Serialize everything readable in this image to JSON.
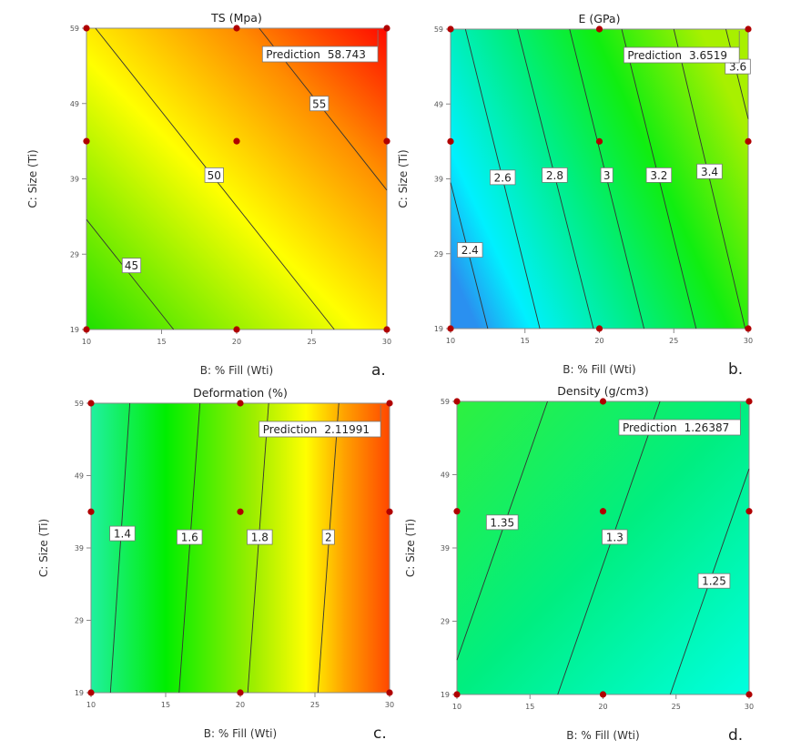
{
  "chart_data": [
    {
      "type": "contour",
      "panel_label": "a.",
      "title": "TS (Mpa)",
      "xlabel": "B: % Fill (Wti)",
      "ylabel": "C: Size (Ti)",
      "xlim": [
        10,
        30
      ],
      "ylim": [
        19,
        59
      ],
      "xticks": [
        10,
        15,
        20,
        25,
        30
      ],
      "yticks": [
        19,
        29,
        39,
        49,
        59
      ],
      "colormap": {
        "from": [
          10,
          19
        ],
        "to": [
          30,
          59
        ],
        "stops": [
          [
            0,
            "#1ee000"
          ],
          [
            0.45,
            "#ffff00"
          ],
          [
            0.75,
            "#ff8c00"
          ],
          [
            1,
            "#ff0a00"
          ]
        ]
      },
      "contours": [
        {
          "level": "45",
          "points": [
            [
              10,
              33.6
            ],
            [
              15.8,
              19
            ]
          ],
          "label_at": [
            13,
            27.5
          ]
        },
        {
          "level": "50",
          "points": [
            [
              10.6,
              59
            ],
            [
              26.5,
              19
            ]
          ],
          "label_at": [
            18.5,
            39.5
          ]
        },
        {
          "level": "55",
          "points": [
            [
              21.5,
              59
            ],
            [
              30,
              37.5
            ]
          ],
          "label_at": [
            25.5,
            49
          ]
        }
      ],
      "design_points": [
        [
          10,
          19
        ],
        [
          20,
          19
        ],
        [
          30,
          19
        ],
        [
          10,
          44
        ],
        [
          20,
          44
        ],
        [
          30,
          44
        ],
        [
          10,
          59
        ],
        [
          20,
          59
        ],
        [
          30,
          59
        ]
      ],
      "prediction": {
        "label": "Prediction",
        "value": "58.743",
        "at": [
          29.4,
          59
        ]
      }
    },
    {
      "type": "contour",
      "panel_label": "b.",
      "title": "E (GPa)",
      "xlabel": "B: % Fill (Wti)",
      "ylabel": "C: Size (Ti)",
      "xlim": [
        10,
        30
      ],
      "ylim": [
        19,
        59
      ],
      "xticks": [
        10,
        15,
        20,
        25,
        30
      ],
      "yticks": [
        19,
        29,
        39,
        49,
        59
      ],
      "colormap": {
        "from": [
          10,
          27
        ],
        "to": [
          30,
          45
        ],
        "stops": [
          [
            0,
            "#2a90f0"
          ],
          [
            0.15,
            "#00f0ff"
          ],
          [
            0.45,
            "#00ee80"
          ],
          [
            0.7,
            "#10ee10"
          ],
          [
            1,
            "#a8f000"
          ]
        ]
      },
      "contours": [
        {
          "level": "2.4",
          "points": [
            [
              10,
              38.5
            ],
            [
              12.5,
              19
            ]
          ],
          "label_at": [
            11.3,
            29.5
          ]
        },
        {
          "level": "2.6",
          "points": [
            [
              11.0,
              59
            ],
            [
              16.0,
              19
            ]
          ],
          "label_at": [
            13.5,
            39.2
          ]
        },
        {
          "level": "2.8",
          "points": [
            [
              14.5,
              59
            ],
            [
              19.6,
              19
            ]
          ],
          "label_at": [
            17.0,
            39.5
          ]
        },
        {
          "level": "3",
          "points": [
            [
              18.0,
              59
            ],
            [
              23.0,
              19
            ]
          ],
          "label_at": [
            20.5,
            39.5
          ]
        },
        {
          "level": "3.2",
          "points": [
            [
              21.5,
              59
            ],
            [
              26.5,
              19
            ]
          ],
          "label_at": [
            24.0,
            39.5
          ]
        },
        {
          "level": "3.4",
          "points": [
            [
              25.0,
              59
            ],
            [
              29.8,
              19
            ]
          ],
          "label_at": [
            27.4,
            40.0
          ]
        },
        {
          "level": "3.6",
          "points": [
            [
              28.5,
              59
            ],
            [
              30,
              47
            ]
          ],
          "label_at": [
            29.3,
            54
          ]
        }
      ],
      "design_points": [
        [
          10,
          19
        ],
        [
          20,
          19
        ],
        [
          30,
          19
        ],
        [
          10,
          44
        ],
        [
          20,
          44
        ],
        [
          30,
          44
        ],
        [
          10,
          59
        ],
        [
          20,
          59
        ],
        [
          30,
          59
        ]
      ],
      "prediction": {
        "label": "Prediction",
        "value": "3.6519",
        "at": [
          29.4,
          59
        ]
      }
    },
    {
      "type": "contour",
      "panel_label": "c.",
      "title": "Deformation (%)",
      "xlabel": "B: % Fill (Wti)",
      "ylabel": "C: Size (Ti)",
      "xlim": [
        10,
        30
      ],
      "ylim": [
        19,
        59
      ],
      "xticks": [
        10,
        15,
        20,
        25,
        30
      ],
      "yticks": [
        19,
        29,
        39,
        49,
        59
      ],
      "colormap": {
        "from": [
          10,
          39
        ],
        "to": [
          30,
          39
        ],
        "stops": [
          [
            0,
            "#20f0a0"
          ],
          [
            0.25,
            "#00ee00"
          ],
          [
            0.55,
            "#a0ee00"
          ],
          [
            0.72,
            "#ffff00"
          ],
          [
            0.85,
            "#ffa000"
          ],
          [
            1,
            "#ff4800"
          ]
        ]
      },
      "contours": [
        {
          "level": "1.4",
          "points": [
            [
              12.6,
              59
            ],
            [
              11.3,
              19
            ]
          ],
          "label_at": [
            12.1,
            41
          ]
        },
        {
          "level": "1.6",
          "points": [
            [
              17.3,
              59
            ],
            [
              15.9,
              19
            ]
          ],
          "label_at": [
            16.6,
            40.5
          ]
        },
        {
          "level": "1.8",
          "points": [
            [
              21.9,
              59
            ],
            [
              20.5,
              19
            ]
          ],
          "label_at": [
            21.3,
            40.5
          ]
        },
        {
          "level": "2",
          "points": [
            [
              26.6,
              59
            ],
            [
              25.2,
              19
            ]
          ],
          "label_at": [
            25.9,
            40.5
          ]
        }
      ],
      "design_points": [
        [
          10,
          19
        ],
        [
          20,
          19
        ],
        [
          30,
          19
        ],
        [
          10,
          44
        ],
        [
          20,
          44
        ],
        [
          30,
          44
        ],
        [
          10,
          59
        ],
        [
          20,
          59
        ],
        [
          30,
          59
        ]
      ],
      "prediction": {
        "label": "Prediction",
        "value": "2.11991",
        "at": [
          29.4,
          59
        ]
      }
    },
    {
      "type": "contour",
      "panel_label": "d.",
      "title": "Density (g/cm3)",
      "xlabel": "B: % Fill (Wti)",
      "ylabel": "C: Size (Ti)",
      "xlim": [
        10,
        30
      ],
      "ylim": [
        19,
        59
      ],
      "xticks": [
        10,
        15,
        20,
        25,
        30
      ],
      "yticks": [
        19,
        29,
        39,
        49,
        59
      ],
      "colormap": {
        "from": [
          10,
          59
        ],
        "to": [
          30,
          19
        ],
        "stops": [
          [
            0,
            "#2ef040"
          ],
          [
            0.5,
            "#00ee80"
          ],
          [
            1,
            "#00ffe0"
          ]
        ]
      },
      "contours": [
        {
          "level": "1.35",
          "points": [
            [
              16.2,
              59
            ],
            [
              10,
              23.7
            ]
          ],
          "label_at": [
            13.1,
            42.5
          ]
        },
        {
          "level": "1.3",
          "points": [
            [
              23.9,
              59
            ],
            [
              16.9,
              19
            ]
          ],
          "label_at": [
            20.8,
            40.5
          ]
        },
        {
          "level": "1.25",
          "points": [
            [
              30,
              49.8
            ],
            [
              24.6,
              19
            ]
          ],
          "label_at": [
            27.6,
            34.5
          ]
        }
      ],
      "design_points": [
        [
          10,
          19
        ],
        [
          20,
          19
        ],
        [
          30,
          19
        ],
        [
          10,
          44
        ],
        [
          20,
          44
        ],
        [
          30,
          44
        ],
        [
          10,
          59
        ],
        [
          20,
          59
        ],
        [
          30,
          59
        ]
      ],
      "prediction": {
        "label": "Prediction",
        "value": "1.26387",
        "at": [
          29.4,
          59
        ]
      }
    }
  ]
}
